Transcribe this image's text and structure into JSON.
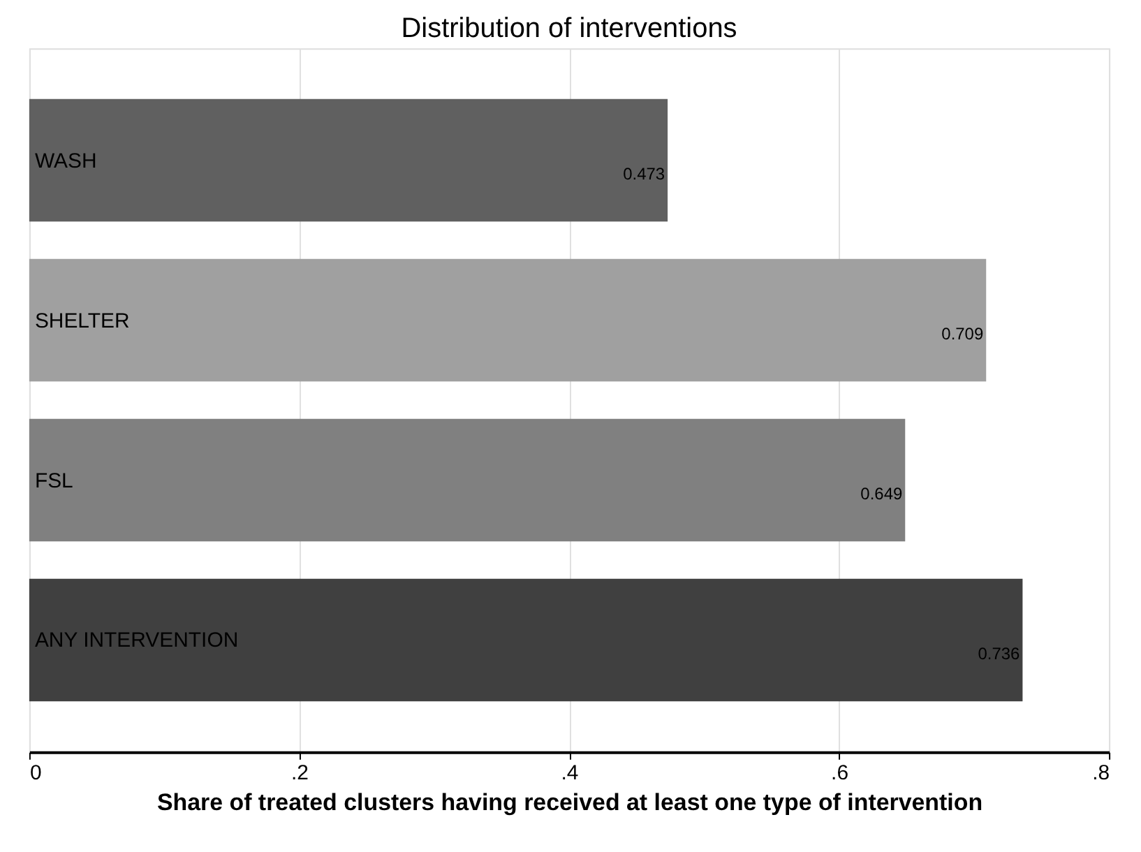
{
  "chart_data": {
    "type": "bar",
    "orientation": "horizontal",
    "title": "Distribution of interventions",
    "xlabel": "Share of treated clusters having received at least one type of intervention",
    "categories": [
      "WASH",
      "SHELTER",
      "FSL",
      "ANY INTERVENTION"
    ],
    "values": [
      0.473,
      0.709,
      0.649,
      0.736
    ],
    "colors": [
      "#606060",
      "#a0a0a0",
      "#808080",
      "#404040"
    ],
    "xlim": [
      0,
      0.8
    ],
    "xticks": [
      0,
      {
        "value": 0.2,
        "label": ".2"
      },
      {
        "value": 0.4,
        "label": ".4"
      },
      {
        "value": 0.6,
        "label": ".6"
      },
      {
        "value": 0.8,
        "label": ".8"
      }
    ],
    "grid": "x",
    "data_labels": true,
    "tick_labels": "x"
  }
}
